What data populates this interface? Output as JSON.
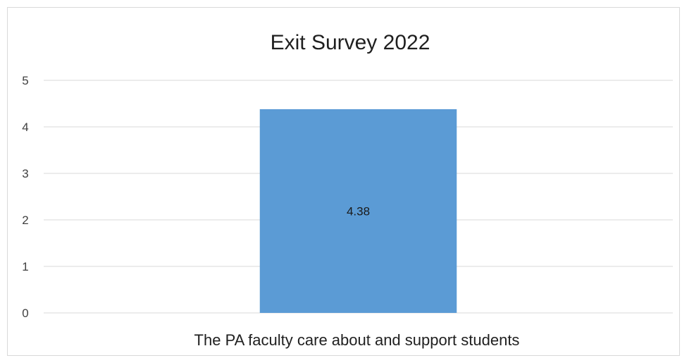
{
  "chart_data": {
    "type": "bar",
    "title": "Exit Survey 2022",
    "categories": [
      "The PA faculty care about and support students"
    ],
    "values": [
      4.38
    ],
    "data_labels": [
      "4.38"
    ],
    "ylim": [
      0,
      5
    ],
    "yticks": [
      0,
      1,
      2,
      3,
      4,
      5
    ],
    "xlabel": "",
    "ylabel": "",
    "grid": true,
    "legend": "none",
    "bar_color": "#5b9bd5",
    "grid_color": "#d9d9d9"
  }
}
